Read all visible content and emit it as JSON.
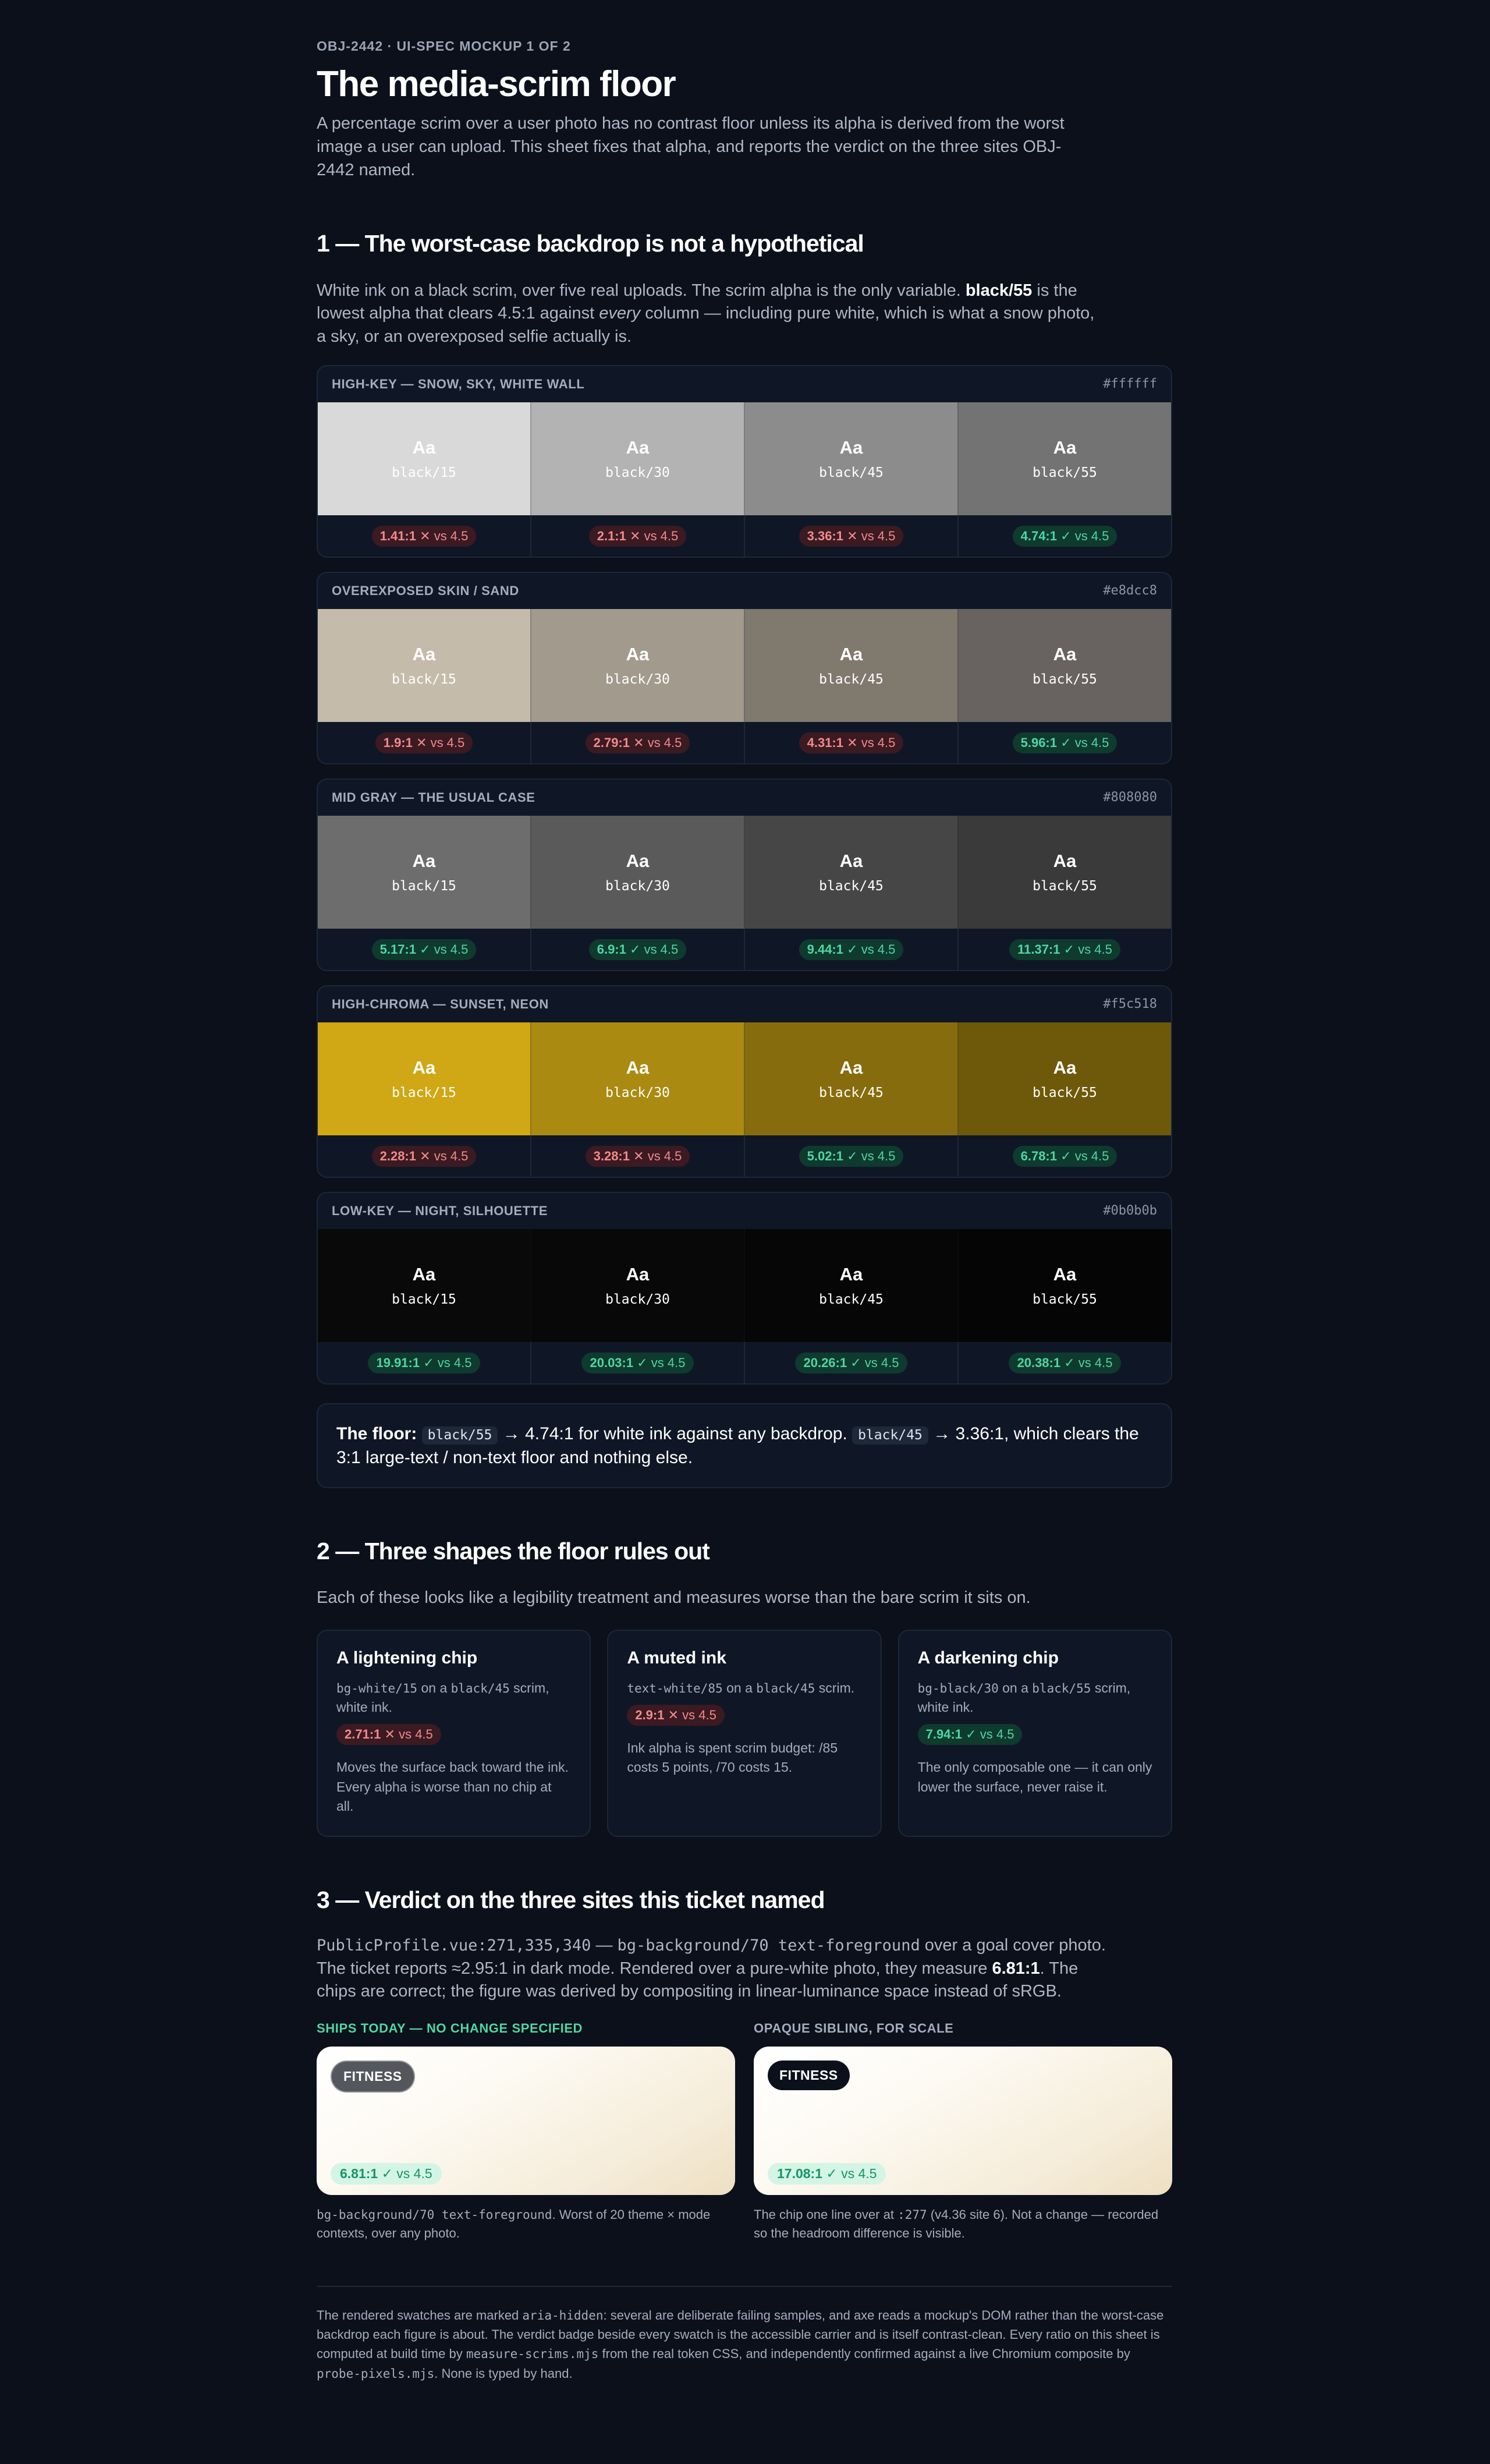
{
  "header": {
    "eyebrow": "OBJ-2442 · UI-SPEC MOCKUP 1 OF 2",
    "title": "The media-scrim floor",
    "lede": "A percentage scrim over a user photo has no contrast floor unless its alpha is derived from the worst image a user can upload. This sheet fixes that alpha, and reports the verdict on the three sites OBJ-2442 named."
  },
  "section1": {
    "heading": "1 — The worst-case backdrop is not a hypothetical",
    "intro_a": "White ink on a black scrim, over five real uploads. The scrim alpha is the only variable. ",
    "intro_bold": "black/55",
    "intro_b": " is the lowest alpha that clears 4.5:1 against ",
    "intro_em": "every",
    "intro_c": " column — including pure white, which is what a snow photo, a sky, or an overexposed selfie actually is.",
    "sample_text": "Aa",
    "threshold": "vs 4.5",
    "alphas": [
      "black/15",
      "black/30",
      "black/45",
      "black/55"
    ],
    "panels": [
      {
        "label": "HIGH-KEY — SNOW, SKY, WHITE WALL",
        "hex": "#ffffff",
        "colors": [
          "#d9d9d9",
          "#b3b3b3",
          "#8c8c8c",
          "#737373"
        ],
        "ratios": [
          "1.41:1",
          "2.1:1",
          "3.36:1",
          "4.74:1"
        ],
        "marks": [
          "✕",
          "✕",
          "✕",
          "✓"
        ],
        "status": [
          "fail",
          "fail",
          "fail",
          "pass"
        ]
      },
      {
        "label": "OVEREXPOSED SKIN / SAND",
        "hex": "#e8dcc8",
        "colors": [
          "#c5bbaa",
          "#a29a8c",
          "#7f796e",
          "#686360"
        ],
        "ratios": [
          "1.9:1",
          "2.79:1",
          "4.31:1",
          "5.96:1"
        ],
        "marks": [
          "✕",
          "✕",
          "✕",
          "✓"
        ],
        "status": [
          "fail",
          "fail",
          "fail",
          "pass"
        ]
      },
      {
        "label": "MID GRAY — THE USUAL CASE",
        "hex": "#808080",
        "colors": [
          "#6d6d6d",
          "#5a5a5a",
          "#464646",
          "#3a3a3a"
        ],
        "ratios": [
          "5.17:1",
          "6.9:1",
          "9.44:1",
          "11.37:1"
        ],
        "marks": [
          "✓",
          "✓",
          "✓",
          "✓"
        ],
        "status": [
          "pass",
          "pass",
          "pass",
          "pass"
        ]
      },
      {
        "label": "HIGH-CHROMA — SUNSET, NEON",
        "hex": "#f5c518",
        "colors": [
          "#d0a714",
          "#ab8a11",
          "#876c0d",
          "#6e590b"
        ],
        "ratios": [
          "2.28:1",
          "3.28:1",
          "5.02:1",
          "6.78:1"
        ],
        "marks": [
          "✕",
          "✕",
          "✓",
          "✓"
        ],
        "status": [
          "fail",
          "fail",
          "pass",
          "pass"
        ]
      },
      {
        "label": "LOW-KEY — NIGHT, SILHOUETTE",
        "hex": "#0b0b0b",
        "colors": [
          "#090909",
          "#080808",
          "#060606",
          "#050505"
        ],
        "ratios": [
          "19.91:1",
          "20.03:1",
          "20.26:1",
          "20.38:1"
        ],
        "marks": [
          "✓",
          "✓",
          "✓",
          "✓"
        ],
        "status": [
          "pass",
          "pass",
          "pass",
          "pass"
        ]
      }
    ],
    "floor_label": "The floor:",
    "floor_code1": "black/55",
    "floor_text1": " → 4.74:1 for white ink against any backdrop. ",
    "floor_code2": "black/45",
    "floor_text2": " → 3.36:1, which clears the 3:1 large-text / non-text floor and nothing else."
  },
  "section2": {
    "heading": "2 — Three shapes the floor rules out",
    "intro": "Each of these looks like a legibility treatment and measures worse than the bare scrim it sits on.",
    "cards": [
      {
        "title": "A lightening chip",
        "spec_a": "bg-white/15",
        "spec_b": " on a ",
        "spec_c": "black/45",
        "spec_d": " scrim, white ink.",
        "ratio": "2.71:1",
        "mark": "✕",
        "status": "fail",
        "note": "Moves the surface back toward the ink. Every alpha is worse than no chip at all."
      },
      {
        "title": "A muted ink",
        "spec_a": "text-white/85",
        "spec_b": " on a ",
        "spec_c": "black/45",
        "spec_d": " scrim.",
        "ratio": "2.9:1",
        "mark": "✕",
        "status": "fail",
        "note": "Ink alpha is spent scrim budget: /85 costs 5 points, /70 costs 15."
      },
      {
        "title": "A darkening chip",
        "spec_a": "bg-black/30",
        "spec_b": " on a ",
        "spec_c": "black/55",
        "spec_d": " scrim, white ink.",
        "ratio": "7.94:1",
        "mark": "✓",
        "status": "pass",
        "note": "The only composable one — it can only lower the surface, never raise it."
      }
    ],
    "threshold": "vs 4.5"
  },
  "section3": {
    "heading": "3 — Verdict on the three sites this ticket named",
    "intro_code1": "PublicProfile.vue:271,335,340",
    "intro_a": " — ",
    "intro_code2": "bg-background/70 text-foreground",
    "intro_b": " over a goal cover photo. The ticket reports ≈2.95:1 in dark mode. Rendered over a pure-white photo, they measure ",
    "intro_bold": "6.81:1",
    "intro_c": ". The chips are correct; the figure was derived by compositing in linear-luminance space instead of sRGB.",
    "threshold": "vs 4.5",
    "left": {
      "heading": "SHIPS TODAY — NO CHANGE SPECIFIED",
      "chip": "FITNESS",
      "ratio": "6.81:1",
      "mark": "✓",
      "cap_code": "bg-background/70 text-foreground",
      "cap_text": ". Worst of 20 theme × mode contexts, over any photo."
    },
    "right": {
      "heading": "OPAQUE SIBLING, FOR SCALE",
      "chip": "FITNESS",
      "ratio": "17.08:1",
      "mark": "✓",
      "cap_a": "The chip one line over at ",
      "cap_code": ":277",
      "cap_b": " (v4.36 site 6). Not a change — recorded so the headroom difference is visible."
    }
  },
  "footer": {
    "a": "The rendered swatches are marked ",
    "code1": "aria-hidden",
    "b": ": several are deliberate failing samples, and axe reads a mockup's DOM rather than the worst-case backdrop each figure is about. The verdict badge beside every swatch is the accessible carrier and is itself contrast-clean. Every ratio on this sheet is computed at build time by ",
    "code2": "measure-scrims.mjs",
    "c": " from the real token CSS, and independently confirmed against a live Chromium composite by ",
    "code3": "probe-pixels.mjs",
    "d": ". None is typed by hand."
  }
}
